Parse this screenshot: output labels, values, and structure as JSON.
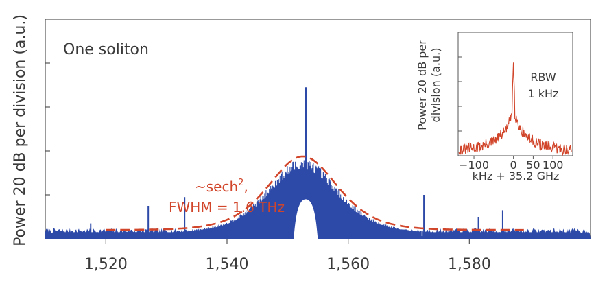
{
  "chart_data": [
    {
      "type": "line",
      "title": "",
      "xlabel": "",
      "ylabel": "Power 20 dB per division (a.u.)",
      "xlim": [
        1510,
        1600
      ],
      "ylim": [
        0,
        100
      ],
      "xticks": [
        1520,
        1540,
        1560,
        1580
      ],
      "xtick_labels": [
        "1,520",
        "1,540",
        "1,560",
        "1,580"
      ],
      "yticks": [
        20,
        40,
        60,
        80
      ],
      "annotations": {
        "label": "One soliton",
        "fit_line1": "~sech",
        "fit_sup": "2",
        "fit_comma": ",",
        "fit_line2": "FWHM = 1.6 THz"
      },
      "series": [
        {
          "style": "spectrum",
          "color": "#2e4aa8",
          "envelope_center": 1552.5,
          "peak_value": 37,
          "floor_value": 3,
          "pump_line": {
            "x": 1553,
            "value": 69
          },
          "filtered_notch": {
            "x_from": 1551,
            "x_to": 1555,
            "top_value": 18
          },
          "spurs": [
            {
              "x": 1517.5,
              "value": 7
            },
            {
              "x": 1527,
              "value": 15
            },
            {
              "x": 1533,
              "value": 19
            },
            {
              "x": 1572.5,
              "value": 20
            },
            {
              "x": 1581.5,
              "value": 10
            },
            {
              "x": 1585.5,
              "value": 13
            }
          ]
        },
        {
          "style": "fit",
          "color": "#d1452a",
          "dashed": true,
          "x_from": 1520,
          "x_to": 1589,
          "peak_value": 37.5,
          "center": 1552.5,
          "fwhm_nm": 12.8
        }
      ]
    },
    {
      "type": "line",
      "title": "",
      "xlabel": "kHz + 35.2 GHz",
      "ylabel_line1": "Power 20 dB per",
      "ylabel_line2": "division (a.u.)",
      "xlim": [
        -140,
        150
      ],
      "ylim": [
        0,
        100
      ],
      "xticks": [
        -100,
        0,
        50,
        100
      ],
      "xtick_labels": [
        "−100",
        "0",
        "50",
        "100"
      ],
      "yticks": [
        20,
        40,
        60,
        80
      ],
      "annotations": {
        "rbw_line1": "RBW",
        "rbw_line2": "1 kHz"
      },
      "series": [
        {
          "color": "#d1452a",
          "center": 0,
          "peak_value": 75,
          "floor_value": 4
        }
      ]
    }
  ]
}
